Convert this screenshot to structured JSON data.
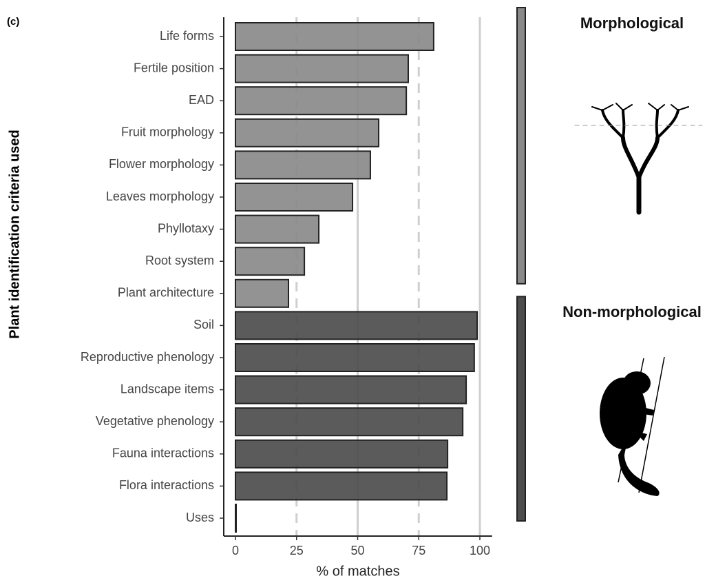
{
  "chart_data": {
    "type": "bar",
    "orientation": "horizontal",
    "panel_label": "(c)",
    "x_label": "% of matches",
    "y_label": "Plant identification criteria used",
    "categories": [
      "Life forms",
      "Fertile position",
      "EAD",
      "Fruit morphology",
      "Flower morphology",
      "Leaves morphology",
      "Phyllotaxy",
      "Root system",
      "Plant architecture",
      "Soil",
      "Reproductive phenology",
      "Landscape items",
      "Vegetative phenology",
      "Fauna interactions",
      "Flora interactions",
      "Uses"
    ],
    "series": [
      {
        "name": "Morphological",
        "color": "#8a8a8a",
        "values": [
          81.1,
          70.7,
          69.9,
          58.6,
          55.2,
          47.9,
          34.1,
          28.2,
          21.7,
          null,
          null,
          null,
          null,
          null,
          null,
          null
        ]
      },
      {
        "name": "Non-morphological",
        "color": "#4d4d4d",
        "values": [
          null,
          null,
          null,
          null,
          null,
          null,
          null,
          null,
          null,
          98.9,
          97.7,
          94.4,
          93,
          86.8,
          86.5,
          0
        ]
      }
    ],
    "xlim": [
      -5,
      105
    ],
    "xticks": [
      0,
      25,
      50,
      75,
      100
    ],
    "grid_solid": [
      50,
      100
    ],
    "grid_dashed": [
      25,
      75
    ]
  }
}
